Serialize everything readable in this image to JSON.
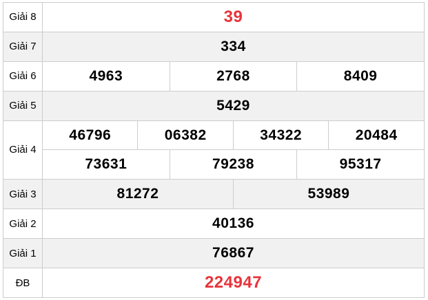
{
  "title": "Vietnamese lottery results table",
  "colors": {
    "highlight_red": "#e8333b",
    "row_alt_bg": "#f1f1f1",
    "border": "#cccccc",
    "number_text": "#000000",
    "label_text": "#000000"
  },
  "prizes": {
    "g8": {
      "label": "Giải 8",
      "value": "39"
    },
    "g7": {
      "label": "Giải 7",
      "value": "334"
    },
    "g6": {
      "label": "Giải 6",
      "values": [
        "4963",
        "2768",
        "8409"
      ]
    },
    "g5": {
      "label": "Giải 5",
      "value": "5429"
    },
    "g4": {
      "label": "Giải 4",
      "row1": [
        "46796",
        "06382",
        "34322",
        "20484"
      ],
      "row2": [
        "73631",
        "79238",
        "95317"
      ]
    },
    "g3": {
      "label": "Giải 3",
      "values": [
        "81272",
        "53989"
      ]
    },
    "g2": {
      "label": "Giải 2",
      "value": "40136"
    },
    "g1": {
      "label": "Giải 1",
      "value": "76867"
    },
    "db": {
      "label": "ĐB",
      "value": "224947"
    }
  }
}
